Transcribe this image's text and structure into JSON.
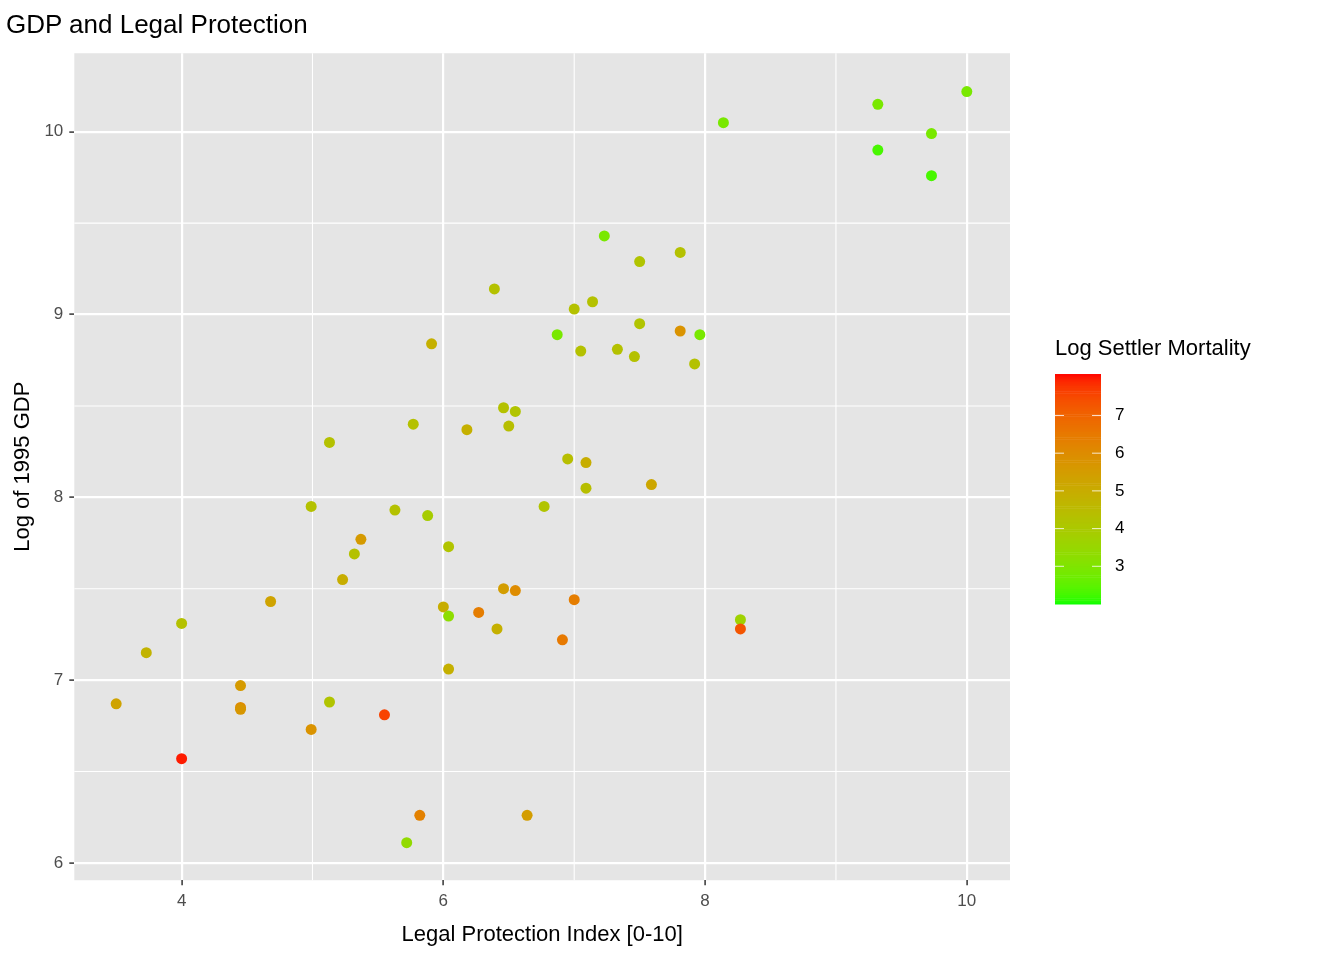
{
  "chart_data": {
    "type": "scatter",
    "title": "GDP and Legal Protection",
    "xlabel": "Legal Protection Index [0-10]",
    "ylabel": "Log of 1995 GDP",
    "clabel": "Log Settler Mortality",
    "xlim": [
      3.18,
      10.33
    ],
    "xticks": [
      4,
      6,
      8,
      10
    ],
    "ylim": [
      5.905,
      10.43
    ],
    "yticks": [
      6,
      7,
      8,
      9,
      10
    ],
    "clim": [
      2.0,
      8.1
    ],
    "cticks": [
      3,
      4,
      5,
      6,
      7
    ],
    "grid": true,
    "legend": false,
    "marker": "circle",
    "x": [
      10.0,
      9.32,
      9.73,
      9.32,
      9.73,
      8.14,
      7.23,
      7.5,
      7.81,
      6.39,
      7.0,
      7.14,
      7.5,
      6.87,
      7.81,
      7.96,
      5.91,
      7.05,
      7.33,
      7.46,
      7.92,
      6.46,
      6.55,
      5.13,
      5.77,
      6.18,
      6.5,
      6.95,
      7.09,
      7.59,
      7.09,
      6.77,
      4.99,
      5.63,
      5.88,
      5.37,
      6.04,
      5.32,
      5.23,
      4.68,
      4.0,
      3.73,
      3.5,
      4.45,
      4.45,
      4.45,
      5.13,
      4.99,
      5.55,
      4.0,
      5.82,
      6.64,
      5.72,
      6.0,
      6.04,
      6.27,
      6.41,
      6.46,
      6.55,
      7.0,
      6.91,
      8.27,
      8.27,
      6.04
    ],
    "values": [
      10.22,
      10.15,
      9.99,
      9.9,
      9.76,
      10.05,
      9.43,
      9.29,
      9.34,
      9.14,
      9.03,
      9.07,
      8.95,
      8.89,
      8.91,
      8.89,
      8.84,
      8.8,
      8.81,
      8.77,
      8.73,
      8.49,
      8.47,
      8.3,
      8.4,
      8.37,
      8.39,
      8.21,
      8.19,
      8.07,
      8.05,
      7.95,
      7.95,
      7.93,
      7.9,
      7.77,
      7.73,
      7.69,
      7.55,
      7.43,
      7.31,
      7.15,
      6.87,
      6.97,
      6.85,
      6.84,
      6.88,
      6.73,
      6.81,
      6.57,
      6.26,
      6.26,
      6.11,
      7.4,
      7.35,
      7.37,
      7.28,
      7.5,
      7.49,
      7.44,
      7.22,
      7.33,
      7.28,
      7.06
    ],
    "cvalues": [
      2.9,
      2.9,
      2.9,
      2.3,
      2.3,
      2.9,
      2.9,
      4.2,
      4.3,
      4.3,
      4.3,
      4.3,
      4.2,
      2.9,
      5.8,
      2.9,
      4.9,
      4.3,
      4.3,
      4.3,
      4.3,
      4.3,
      4.2,
      4.3,
      4.3,
      4.9,
      4.4,
      4.4,
      5.0,
      5.2,
      4.4,
      4.2,
      4.3,
      4.3,
      3.9,
      5.6,
      4.2,
      4.3,
      5.0,
      5.3,
      4.3,
      4.8,
      5.3,
      5.6,
      6.0,
      5.7,
      4.2,
      5.8,
      7.6,
      8.0,
      6.3,
      5.5,
      3.4,
      5.0,
      3.3,
      6.4,
      4.9,
      5.5,
      6.0,
      6.4,
      6.5,
      3.7,
      7.3,
      4.9
    ]
  }
}
